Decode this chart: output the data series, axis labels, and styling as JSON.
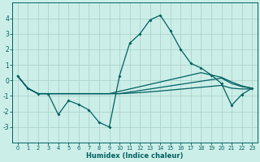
{
  "xlabel": "Humidex (Indice chaleur)",
  "bg_color": "#cceee8",
  "grid_color": "#aad4cc",
  "line_color": "#006060",
  "xlim": [
    -0.5,
    23.5
  ],
  "ylim": [
    -4,
    5
  ],
  "yticks": [
    -3,
    -2,
    -1,
    0,
    1,
    2,
    3,
    4
  ],
  "xticks": [
    0,
    1,
    2,
    3,
    4,
    5,
    6,
    7,
    8,
    9,
    10,
    11,
    12,
    13,
    14,
    15,
    16,
    17,
    18,
    19,
    20,
    21,
    22,
    23
  ],
  "spiky_x": [
    0,
    1,
    2,
    3,
    4,
    5,
    6,
    7,
    8,
    9,
    10,
    11,
    12,
    13,
    14,
    15,
    16,
    17,
    18,
    19,
    20,
    21,
    22,
    23
  ],
  "spiky_y": [
    0.3,
    -0.5,
    -0.85,
    -0.85,
    -2.2,
    -1.3,
    -1.55,
    -1.9,
    -2.7,
    -3.0,
    0.3,
    2.4,
    3.0,
    3.9,
    4.2,
    3.2,
    2.0,
    1.1,
    0.8,
    0.35,
    -0.2,
    -1.6,
    -0.9,
    -0.5
  ],
  "line1_x": [
    0,
    1,
    2,
    3,
    4,
    5,
    6,
    7,
    8,
    9,
    10,
    11,
    12,
    13,
    14,
    15,
    16,
    17,
    18,
    19,
    20,
    21,
    22,
    23
  ],
  "line1_y": [
    0.3,
    -0.5,
    -0.85,
    -0.85,
    -0.85,
    -0.85,
    -0.85,
    -0.85,
    -0.85,
    -0.85,
    -0.85,
    -0.82,
    -0.78,
    -0.73,
    -0.68,
    -0.62,
    -0.56,
    -0.5,
    -0.44,
    -0.38,
    -0.32,
    -0.5,
    -0.55,
    -0.55
  ],
  "line2_x": [
    0,
    1,
    2,
    3,
    4,
    5,
    6,
    7,
    8,
    9,
    10,
    11,
    12,
    13,
    14,
    15,
    16,
    17,
    18,
    19,
    20,
    21,
    22,
    23
  ],
  "line2_y": [
    0.3,
    -0.5,
    -0.85,
    -0.85,
    -0.85,
    -0.85,
    -0.85,
    -0.85,
    -0.85,
    -0.85,
    -0.85,
    -0.75,
    -0.65,
    -0.55,
    -0.45,
    -0.35,
    -0.25,
    -0.15,
    -0.05,
    0.05,
    0.15,
    -0.2,
    -0.4,
    -0.5
  ],
  "line3_x": [
    0,
    1,
    2,
    3,
    4,
    5,
    6,
    7,
    8,
    9,
    10,
    11,
    12,
    13,
    14,
    15,
    16,
    17,
    18,
    19,
    20,
    21,
    22,
    23
  ],
  "line3_y": [
    0.3,
    -0.5,
    -0.85,
    -0.85,
    -0.85,
    -0.85,
    -0.85,
    -0.85,
    -0.85,
    -0.85,
    -0.7,
    -0.55,
    -0.4,
    -0.25,
    -0.1,
    0.05,
    0.2,
    0.35,
    0.5,
    0.35,
    0.2,
    -0.1,
    -0.35,
    -0.5
  ]
}
